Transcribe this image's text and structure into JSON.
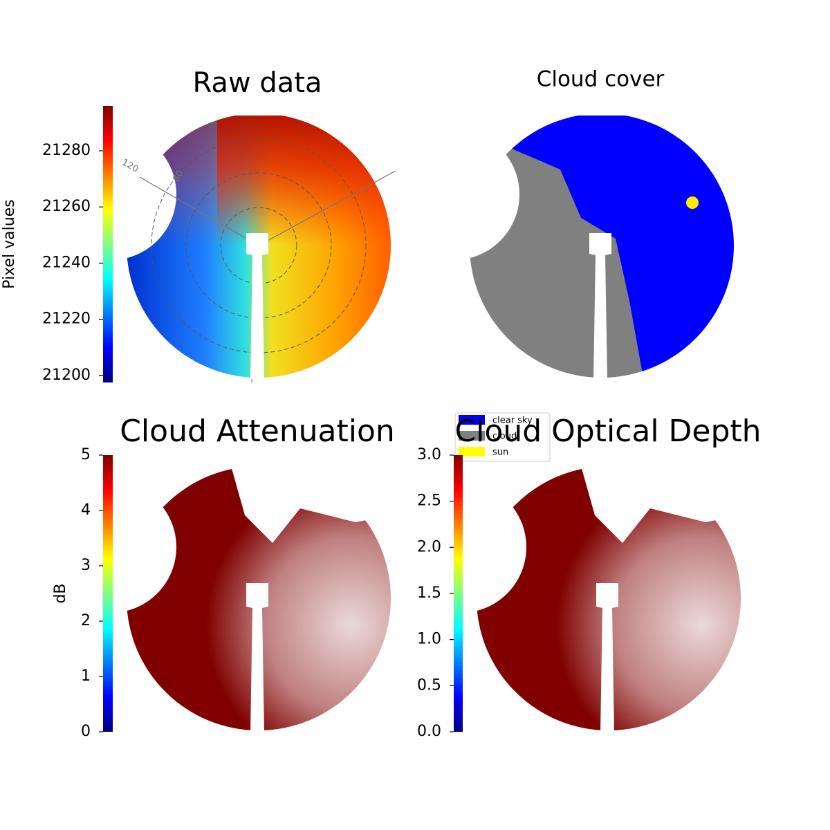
{
  "chart_data": [
    {
      "type": "image",
      "title": "Raw data",
      "annotations": [
        "120",
        "80"
      ],
      "colorbar": {
        "label": "Pixel values",
        "lim": [
          21197.5,
          21296
        ],
        "ticks": [
          21200,
          21220,
          21240,
          21260,
          21280
        ]
      }
    },
    {
      "type": "image",
      "title": "Cloud cover",
      "series": [
        {
          "name": "clear sky",
          "color": "#0000ff"
        },
        {
          "name": "cloud",
          "color": "#808080"
        },
        {
          "name": "sun",
          "color": "#ffff00"
        }
      ]
    },
    {
      "type": "image",
      "title": "Cloud Attenuation",
      "colorbar": {
        "label": "dB",
        "lim": [
          0,
          5
        ],
        "ticks": [
          0,
          1,
          2,
          3,
          4,
          5
        ]
      }
    },
    {
      "type": "image",
      "title": "Cloud Optical Depth",
      "colorbar": {
        "lim": [
          0,
          3
        ],
        "ticks": [
          {
            "value": 0,
            "label": "0.0"
          },
          0.5,
          {
            "value": 1,
            "label": "1.0"
          },
          1.5,
          {
            "value": 2,
            "label": "2.0"
          },
          2.5,
          {
            "value": 3,
            "label": "3.0"
          }
        ]
      }
    }
  ]
}
